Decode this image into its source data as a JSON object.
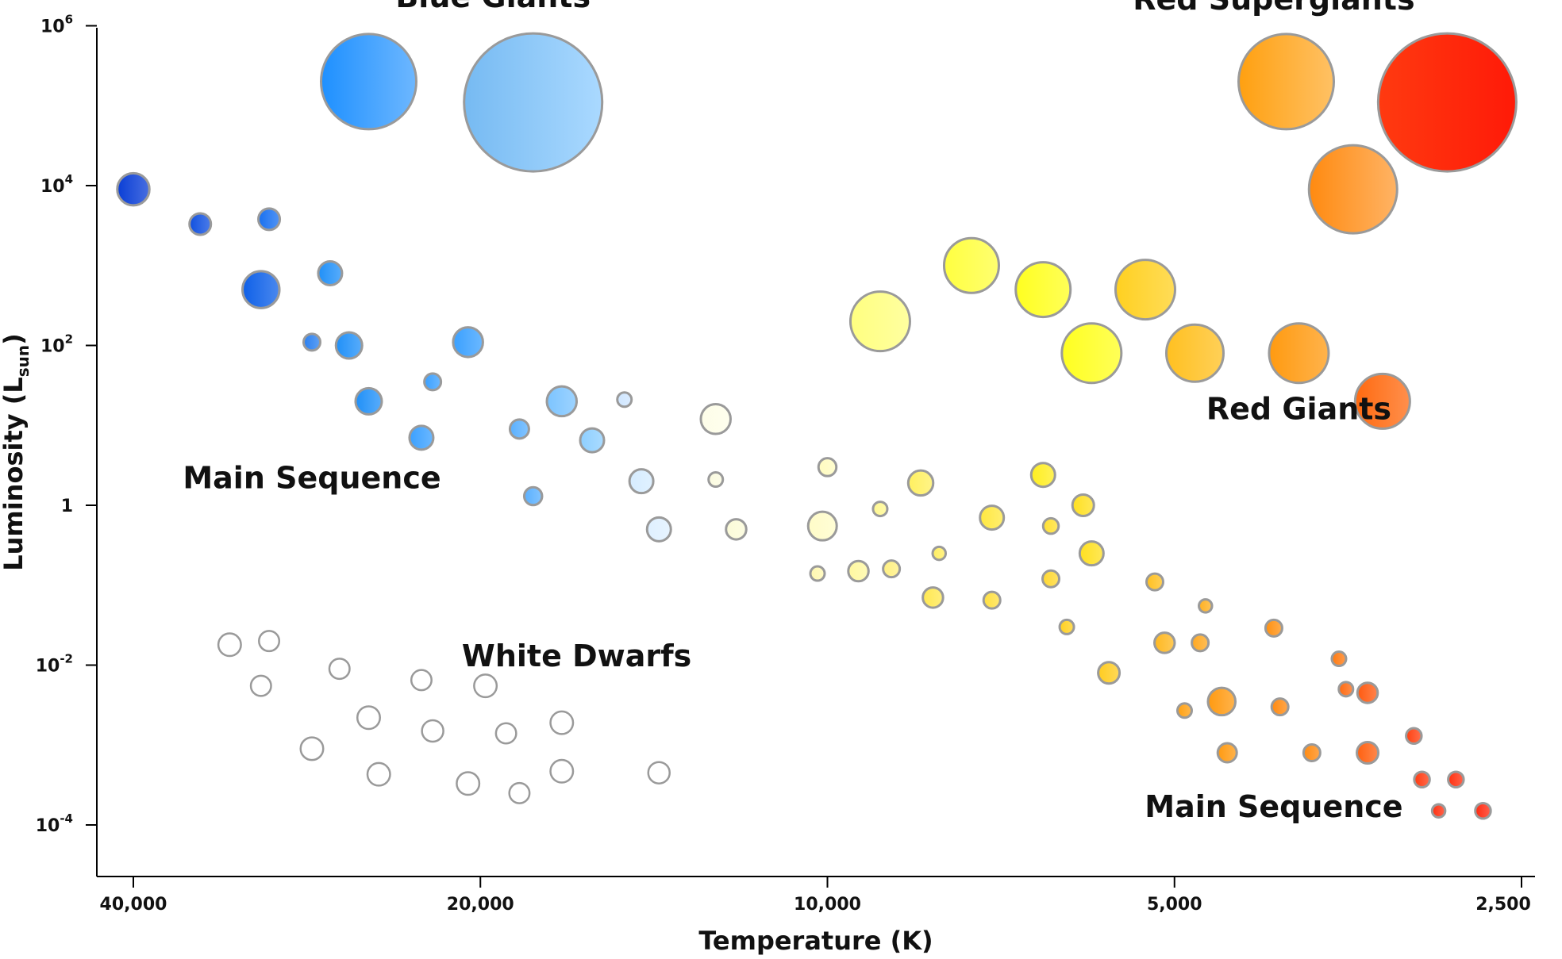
{
  "chart_data": {
    "type": "scatter",
    "title": "",
    "xlabel": "Temperature (K)",
    "ylabel": "Luminosity",
    "ylabel_subscript": "sun",
    "x_scale": "log-reversed",
    "y_scale": "log",
    "xlim": [
      43000,
      2400
    ],
    "ylim": [
      3.5e-05,
      2000000
    ],
    "x_ticks": [
      {
        "value": 40000,
        "label": "40,000"
      },
      {
        "value": 20000,
        "label": "20,000"
      },
      {
        "value": 10000,
        "label": "10,000"
      },
      {
        "value": 5000,
        "label": "5,000"
      },
      {
        "value": 2500,
        "label": "2,500"
      }
    ],
    "y_ticks": [
      {
        "value": 1000000,
        "base": "10",
        "exp": "6"
      },
      {
        "value": 10000,
        "base": "10",
        "exp": "4"
      },
      {
        "value": 100,
        "base": "10",
        "exp": "2"
      },
      {
        "value": 1,
        "base": "1",
        "exp": ""
      },
      {
        "value": 0.01,
        "base": "10",
        "exp": "-2"
      },
      {
        "value": 0.0001,
        "base": "10",
        "exp": "-4"
      }
    ],
    "region_labels": [
      {
        "text": "Blue Giants",
        "x": 19500,
        "y": 2300000
      },
      {
        "text": "Red Supergiants",
        "x": 4100,
        "y": 2150000
      },
      {
        "text": "Red Giants",
        "x": 3900,
        "y": 16
      },
      {
        "text": "Main Sequence",
        "x": 28000,
        "y": 2.2
      },
      {
        "text": "White Dwarfs",
        "x": 16500,
        "y": 0.013
      },
      {
        "text": "Main Sequence",
        "x": 4100,
        "y": 0.00017
      }
    ],
    "stars": [
      {
        "group": "blue-giant",
        "x": 25000,
        "y": 200000,
        "size": 4,
        "color": "#1e90ff"
      },
      {
        "group": "blue-giant",
        "x": 18000,
        "y": 110000,
        "size": 5.8,
        "color": "#7cc4ff"
      },
      {
        "group": "red-supergiant",
        "x": 4000,
        "y": 200000,
        "size": 4,
        "color": "#ffa010"
      },
      {
        "group": "red-supergiant",
        "x": 2900,
        "y": 110000,
        "size": 5.8,
        "color": "#ff3a10"
      },
      {
        "group": "red-supergiant",
        "x": 3500,
        "y": 9000,
        "size": 3.7,
        "color": "#ff8a10"
      },
      {
        "group": "red-giant",
        "x": 7500,
        "y": 1000,
        "size": 2.3,
        "color": "#ffff40"
      },
      {
        "group": "red-giant",
        "x": 6500,
        "y": 500,
        "size": 2.3,
        "color": "#ffff20"
      },
      {
        "group": "red-giant",
        "x": 5300,
        "y": 500,
        "size": 2.5,
        "color": "#ffd020"
      },
      {
        "group": "red-giant",
        "x": 9000,
        "y": 200,
        "size": 2.5,
        "color": "#ffff80"
      },
      {
        "group": "red-giant",
        "x": 5900,
        "y": 80,
        "size": 2.5,
        "color": "#ffff20"
      },
      {
        "group": "red-giant",
        "x": 4800,
        "y": 80,
        "size": 2.4,
        "color": "#ffc020"
      },
      {
        "group": "red-giant",
        "x": 3900,
        "y": 80,
        "size": 2.5,
        "color": "#ff9a10"
      },
      {
        "group": "red-giant",
        "x": 3300,
        "y": 20,
        "size": 2.3,
        "color": "#ff6a10"
      },
      {
        "group": "main-sequence",
        "x": 40000,
        "y": 9000,
        "size": 1.35,
        "color": "#0a3ed6"
      },
      {
        "group": "main-sequence",
        "x": 35000,
        "y": 3300,
        "size": 0.9,
        "color": "#1050e0"
      },
      {
        "group": "main-sequence",
        "x": 30500,
        "y": 3800,
        "size": 0.9,
        "color": "#1870f0"
      },
      {
        "group": "main-sequence",
        "x": 31000,
        "y": 500,
        "size": 1.55,
        "color": "#0e60e8"
      },
      {
        "group": "main-sequence",
        "x": 27000,
        "y": 800,
        "size": 1.0,
        "color": "#2090f8"
      },
      {
        "group": "main-sequence",
        "x": 26000,
        "y": 100,
        "size": 1.1,
        "color": "#2090f8"
      },
      {
        "group": "main-sequence",
        "x": 28000,
        "y": 110,
        "size": 0.7,
        "color": "#2a80f0"
      },
      {
        "group": "main-sequence",
        "x": 20500,
        "y": 110,
        "size": 1.25,
        "color": "#3aa0ff"
      },
      {
        "group": "main-sequence",
        "x": 22000,
        "y": 35,
        "size": 0.7,
        "color": "#3aa0ff"
      },
      {
        "group": "main-sequence",
        "x": 25000,
        "y": 20,
        "size": 1.1,
        "color": "#2090f8"
      },
      {
        "group": "main-sequence",
        "x": 22500,
        "y": 7,
        "size": 1.0,
        "color": "#3aa0ff"
      },
      {
        "group": "main-sequence",
        "x": 17000,
        "y": 20,
        "size": 1.25,
        "color": "#7cc4ff"
      },
      {
        "group": "main-sequence",
        "x": 18500,
        "y": 9,
        "size": 0.8,
        "color": "#5ab0ff"
      },
      {
        "group": "main-sequence",
        "x": 16000,
        "y": 6.5,
        "size": 1.0,
        "color": "#8ecfff"
      },
      {
        "group": "main-sequence",
        "x": 18000,
        "y": 1.3,
        "size": 0.75,
        "color": "#5ab0ff"
      },
      {
        "group": "main-sequence",
        "x": 15000,
        "y": 21,
        "size": 0.6,
        "color": "#cfe6ff"
      },
      {
        "group": "main-sequence",
        "x": 14500,
        "y": 2.0,
        "size": 1.0,
        "color": "#d6ecff"
      },
      {
        "group": "main-sequence",
        "x": 14000,
        "y": 0.5,
        "size": 1.0,
        "color": "#dff0ff"
      },
      {
        "group": "main-sequence",
        "x": 12500,
        "y": 12,
        "size": 1.25,
        "color": "#fdfde8"
      },
      {
        "group": "main-sequence",
        "x": 12500,
        "y": 2.1,
        "size": 0.6,
        "color": "#fbfbe0"
      },
      {
        "group": "main-sequence",
        "x": 12000,
        "y": 0.5,
        "size": 0.85,
        "color": "#fbfbd8"
      },
      {
        "group": "main-sequence",
        "x": 10000,
        "y": 3,
        "size": 0.75,
        "color": "#fffcc0"
      },
      {
        "group": "main-sequence",
        "x": 10100,
        "y": 0.55,
        "size": 1.2,
        "color": "#fffcc8"
      },
      {
        "group": "main-sequence",
        "x": 10200,
        "y": 0.14,
        "size": 0.6,
        "color": "#fff8b0"
      },
      {
        "group": "main-sequence",
        "x": 9400,
        "y": 0.15,
        "size": 0.85,
        "color": "#fff8a0"
      },
      {
        "group": "main-sequence",
        "x": 9000,
        "y": 0.9,
        "size": 0.6,
        "color": "#fff890"
      },
      {
        "group": "main-sequence",
        "x": 8800,
        "y": 0.16,
        "size": 0.7,
        "color": "#fff080"
      },
      {
        "group": "main-sequence",
        "x": 8300,
        "y": 1.9,
        "size": 1.05,
        "color": "#fff060"
      },
      {
        "group": "main-sequence",
        "x": 8000,
        "y": 0.25,
        "size": 0.55,
        "color": "#ffee60"
      },
      {
        "group": "main-sequence",
        "x": 8100,
        "y": 0.07,
        "size": 0.85,
        "color": "#ffe850"
      },
      {
        "group": "main-sequence",
        "x": 7200,
        "y": 0.7,
        "size": 1.0,
        "color": "#ffe840"
      },
      {
        "group": "main-sequence",
        "x": 7200,
        "y": 0.065,
        "size": 0.7,
        "color": "#ffe040"
      },
      {
        "group": "main-sequence",
        "x": 6500,
        "y": 2.4,
        "size": 1.0,
        "color": "#ffee20"
      },
      {
        "group": "main-sequence",
        "x": 6400,
        "y": 0.55,
        "size": 0.65,
        "color": "#ffe030"
      },
      {
        "group": "main-sequence",
        "x": 6400,
        "y": 0.12,
        "size": 0.7,
        "color": "#ffd830"
      },
      {
        "group": "main-sequence",
        "x": 6200,
        "y": 0.03,
        "size": 0.6,
        "color": "#ffd020"
      },
      {
        "group": "main-sequence",
        "x": 6000,
        "y": 1.0,
        "size": 0.9,
        "color": "#ffe020"
      },
      {
        "group": "main-sequence",
        "x": 5900,
        "y": 0.25,
        "size": 1.0,
        "color": "#ffe020"
      },
      {
        "group": "main-sequence",
        "x": 5700,
        "y": 0.008,
        "size": 0.9,
        "color": "#ffcc20"
      },
      {
        "group": "main-sequence",
        "x": 5200,
        "y": 0.11,
        "size": 0.7,
        "color": "#ffc020"
      },
      {
        "group": "main-sequence",
        "x": 5100,
        "y": 0.019,
        "size": 0.85,
        "color": "#ffb820"
      },
      {
        "group": "main-sequence",
        "x": 4700,
        "y": 0.055,
        "size": 0.55,
        "color": "#ffb020"
      },
      {
        "group": "main-sequence",
        "x": 4750,
        "y": 0.019,
        "size": 0.7,
        "color": "#ffa820"
      },
      {
        "group": "main-sequence",
        "x": 4900,
        "y": 0.0027,
        "size": 0.6,
        "color": "#ffa010"
      },
      {
        "group": "main-sequence",
        "x": 4550,
        "y": 0.0035,
        "size": 1.15,
        "color": "#ff9a10"
      },
      {
        "group": "main-sequence",
        "x": 4500,
        "y": 0.0008,
        "size": 0.8,
        "color": "#ff9a10"
      },
      {
        "group": "main-sequence",
        "x": 4100,
        "y": 0.029,
        "size": 0.7,
        "color": "#ff9010"
      },
      {
        "group": "main-sequence",
        "x": 4050,
        "y": 0.003,
        "size": 0.7,
        "color": "#ff8a10"
      },
      {
        "group": "main-sequence",
        "x": 3800,
        "y": 0.0008,
        "size": 0.7,
        "color": "#ff8a10"
      },
      {
        "group": "main-sequence",
        "x": 3600,
        "y": 0.012,
        "size": 0.6,
        "color": "#ff7a10"
      },
      {
        "group": "main-sequence",
        "x": 3550,
        "y": 0.005,
        "size": 0.6,
        "color": "#ff6a10"
      },
      {
        "group": "main-sequence",
        "x": 3400,
        "y": 0.0045,
        "size": 0.85,
        "color": "#ff5a10"
      },
      {
        "group": "main-sequence",
        "x": 3400,
        "y": 0.0008,
        "size": 0.9,
        "color": "#ff6010"
      },
      {
        "group": "main-sequence",
        "x": 3100,
        "y": 0.0013,
        "size": 0.65,
        "color": "#ff4010"
      },
      {
        "group": "main-sequence",
        "x": 3050,
        "y": 0.00037,
        "size": 0.65,
        "color": "#ff3a10"
      },
      {
        "group": "main-sequence",
        "x": 2850,
        "y": 0.00037,
        "size": 0.65,
        "color": "#ff3010"
      },
      {
        "group": "main-sequence",
        "x": 2950,
        "y": 0.00015,
        "size": 0.55,
        "color": "#ff3010"
      },
      {
        "group": "main-sequence",
        "x": 2700,
        "y": 0.00015,
        "size": 0.65,
        "color": "#ff2a10"
      },
      {
        "group": "white-dwarf",
        "x": 33000,
        "y": 0.018,
        "size": 0.95,
        "color": "#ffffff"
      },
      {
        "group": "white-dwarf",
        "x": 30500,
        "y": 0.02,
        "size": 0.85,
        "color": "#ffffff"
      },
      {
        "group": "white-dwarf",
        "x": 31000,
        "y": 0.0055,
        "size": 0.85,
        "color": "#ffffff"
      },
      {
        "group": "white-dwarf",
        "x": 26500,
        "y": 0.009,
        "size": 0.85,
        "color": "#ffffff"
      },
      {
        "group": "white-dwarf",
        "x": 22500,
        "y": 0.0065,
        "size": 0.85,
        "color": "#ffffff"
      },
      {
        "group": "white-dwarf",
        "x": 19800,
        "y": 0.0055,
        "size": 0.95,
        "color": "#ffffff"
      },
      {
        "group": "white-dwarf",
        "x": 25000,
        "y": 0.0022,
        "size": 0.95,
        "color": "#ffffff"
      },
      {
        "group": "white-dwarf",
        "x": 22000,
        "y": 0.0015,
        "size": 0.9,
        "color": "#ffffff"
      },
      {
        "group": "white-dwarf",
        "x": 19000,
        "y": 0.0014,
        "size": 0.85,
        "color": "#ffffff"
      },
      {
        "group": "white-dwarf",
        "x": 17000,
        "y": 0.0019,
        "size": 0.95,
        "color": "#ffffff"
      },
      {
        "group": "white-dwarf",
        "x": 28000,
        "y": 0.0009,
        "size": 0.95,
        "color": "#ffffff"
      },
      {
        "group": "white-dwarf",
        "x": 24500,
        "y": 0.00043,
        "size": 0.95,
        "color": "#ffffff"
      },
      {
        "group": "white-dwarf",
        "x": 20500,
        "y": 0.00033,
        "size": 0.95,
        "color": "#ffffff"
      },
      {
        "group": "white-dwarf",
        "x": 18500,
        "y": 0.00025,
        "size": 0.85,
        "color": "#ffffff"
      },
      {
        "group": "white-dwarf",
        "x": 17000,
        "y": 0.00047,
        "size": 0.95,
        "color": "#ffffff"
      },
      {
        "group": "white-dwarf",
        "x": 14000,
        "y": 0.00045,
        "size": 0.9,
        "color": "#ffffff"
      }
    ]
  }
}
